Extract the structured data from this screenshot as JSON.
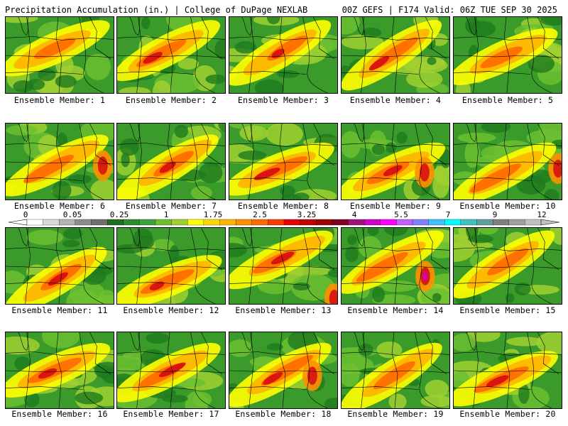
{
  "header": {
    "left_title": "Precipitation Accumulation (in.) | College of DuPage NEXLAB",
    "right_title": "00Z GEFS | F174 Valid: 06Z TUE SEP 30 2025"
  },
  "members": [
    {
      "label": "Ensemble Member: 1"
    },
    {
      "label": "Ensemble Member: 2"
    },
    {
      "label": "Ensemble Member: 3"
    },
    {
      "label": "Ensemble Member: 4"
    },
    {
      "label": "Ensemble Member: 5"
    },
    {
      "label": "Ensemble Member: 6"
    },
    {
      "label": "Ensemble Member: 7"
    },
    {
      "label": "Ensemble Member: 8"
    },
    {
      "label": "Ensemble Member: 9"
    },
    {
      "label": "Ensemble Member: 10"
    },
    {
      "label": "Ensemble Member: 11"
    },
    {
      "label": "Ensemble Member: 12"
    },
    {
      "label": "Ensemble Member: 13"
    },
    {
      "label": "Ensemble Member: 14"
    },
    {
      "label": "Ensemble Member: 15"
    },
    {
      "label": "Ensemble Member: 16"
    },
    {
      "label": "Ensemble Member: 17"
    },
    {
      "label": "Ensemble Member: 18"
    },
    {
      "label": "Ensemble Member: 19"
    },
    {
      "label": "Ensemble Member: 20"
    }
  ],
  "color_scale": {
    "tick_labels": [
      "0",
      "0.05",
      "0.25",
      "1",
      "1.75",
      "2.5",
      "3.25",
      "4",
      "5.5",
      "7",
      "9",
      "12"
    ],
    "colors": [
      "#ffffff",
      "#d8d8d8",
      "#b4b4b4",
      "#8c8c8c",
      "#6e6e6e",
      "#1e6e1e",
      "#2e8b2e",
      "#3ea33e",
      "#6cc030",
      "#a0d030",
      "#ffff00",
      "#ffd800",
      "#ffb400",
      "#ff9000",
      "#ff6a00",
      "#ff3a00",
      "#e80000",
      "#c00000",
      "#a00000",
      "#800020",
      "#a0107a",
      "#d000c8",
      "#ff00ff",
      "#c060ff",
      "#8080ff",
      "#40c0ff",
      "#00ffff",
      "#40c0c0",
      "#60a0a0",
      "#808080",
      "#a0a0a0",
      "#c0c0c0"
    ]
  }
}
